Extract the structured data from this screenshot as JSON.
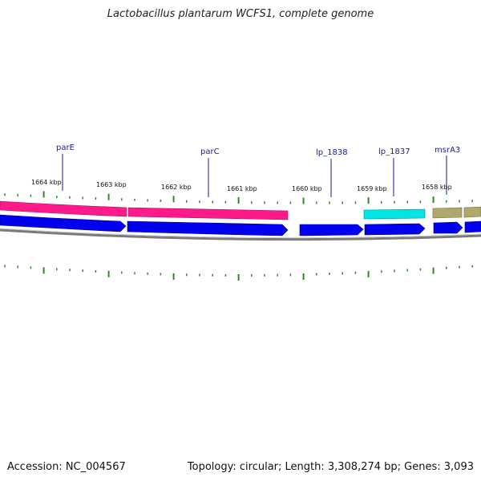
{
  "title": "Lactobacillus plantarum WCFS1, complete genome",
  "footer": {
    "accession": "Accession: NC_004567",
    "summary": "Topology: circular; Length: 3,308,274 bp; Genes: 3,093"
  },
  "colors": {
    "tick": "#2e8b22",
    "gene_line": "#1a1aa8",
    "cds_forward": "#0000ee",
    "parE_parC_feature": "#ff1a8c",
    "lp_1837_feature": "#00e5e5",
    "msrA3_feature": "#b0a86a",
    "backbone": "#888888"
  },
  "scale_labels": [
    "1664 kbp",
    "1663 kbp",
    "1662 kbp",
    "1661 kbp",
    "1660 kbp",
    "1659 kbp",
    "1658 kbp"
  ],
  "gene_labels": [
    "parE",
    "parC",
    "lp_1838",
    "lp_1837",
    "msrA3"
  ]
}
